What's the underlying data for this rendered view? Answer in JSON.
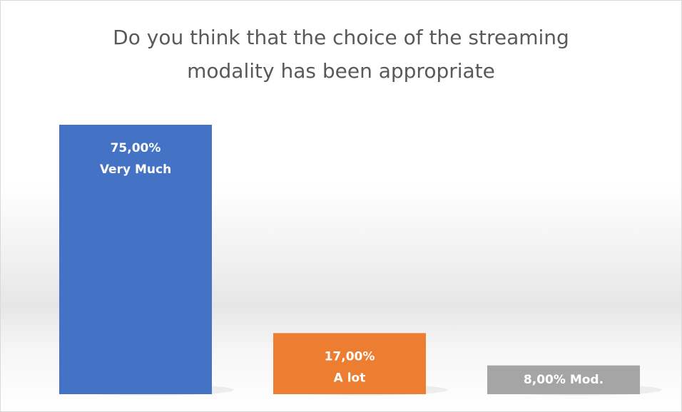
{
  "chart_data": {
    "type": "bar",
    "title": "Do you think that the choice of the streaming modality has been appropriate",
    "categories": [
      "Very Much",
      "A lot",
      "Mod."
    ],
    "values": [
      75,
      17,
      8
    ],
    "value_labels": [
      "75,00%",
      "17,00%",
      "8,00%"
    ],
    "colors": [
      "#4472c4",
      "#ed7d31",
      "#a5a5a5"
    ]
  }
}
